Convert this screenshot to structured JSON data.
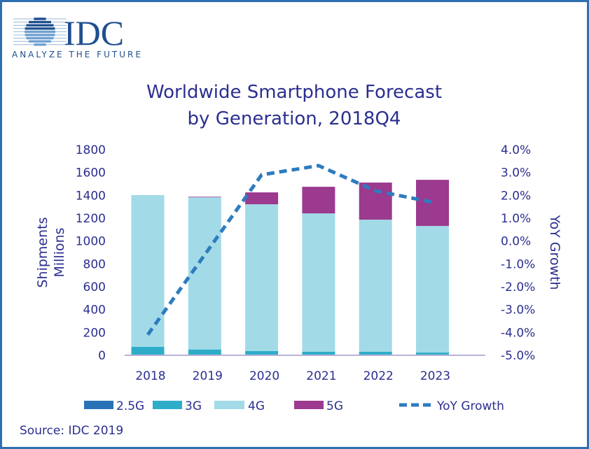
{
  "logo": {
    "name": "IDC",
    "tagline": "ANALYZE THE FUTURE"
  },
  "colors": {
    "2.5G": "#2a72b8",
    "3G": "#2eadc9",
    "4G": "#a2dbe7",
    "5G": "#9b3a8f",
    "YoY Growth": "#2e7bbf",
    "text": "#2b2f8f"
  },
  "chart_data": {
    "type": "bar",
    "stacked": true,
    "title": "Worldwide Smartphone Forecast",
    "subtitle": "by Generation, 2018Q4",
    "ylabel": [
      "Shipments",
      "Millions"
    ],
    "y2label": "YoY Growth",
    "ylim": [
      0,
      1800
    ],
    "yticks": [
      "0",
      "200",
      "400",
      "600",
      "800",
      "1000",
      "1200",
      "1400",
      "1600",
      "1800"
    ],
    "y2lim": [
      -5.0,
      4.0
    ],
    "y2ticks": [
      "-5.0%",
      "-4.0%",
      "-3.0%",
      "-2.0%",
      "-1.0%",
      "0.0%",
      "1.0%",
      "2.0%",
      "3.0%",
      "4.0%"
    ],
    "categories": [
      "2018",
      "2019",
      "2020",
      "2021",
      "2022",
      "2023"
    ],
    "series": [
      {
        "name": "2.5G",
        "values": [
          2,
          1,
          1,
          1,
          1,
          1
        ]
      },
      {
        "name": "3G",
        "values": [
          73,
          50,
          36,
          30,
          30,
          23
        ]
      },
      {
        "name": "4G",
        "values": [
          1327,
          1332,
          1285,
          1211,
          1156,
          1108
        ]
      },
      {
        "name": "5G",
        "values": [
          0,
          5,
          104,
          233,
          325,
          404
        ]
      }
    ],
    "line": {
      "name": "YoY Growth",
      "axis": "right",
      "values": [
        -4.1,
        -0.6,
        2.9,
        3.3,
        2.2,
        1.7
      ]
    },
    "grid": false,
    "legend": "bottom",
    "source": "Source: IDC 2019"
  }
}
